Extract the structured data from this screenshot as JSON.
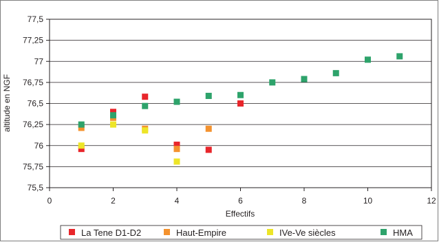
{
  "chart_data": {
    "type": "scatter",
    "title": "",
    "xlabel": "Effectifs",
    "ylabel": "altitude en NGF",
    "xlim": [
      0,
      12
    ],
    "ylim": [
      75.5,
      77.5
    ],
    "x_ticks": [
      "0",
      "2",
      "4",
      "6",
      "8",
      "10",
      "12"
    ],
    "y_ticks": [
      "75,5",
      "75,75",
      "76",
      "76,25",
      "76,5",
      "76,75",
      "77",
      "77,25",
      "77,5"
    ],
    "grid": "horizontal",
    "legend_position": "bottom",
    "series": [
      {
        "name": "La Tene D1-D2",
        "color": "#e8262b",
        "points": [
          [
            1,
            75.96
          ],
          [
            2,
            76.4
          ],
          [
            3,
            76.58
          ],
          [
            4,
            76.01
          ],
          [
            5,
            75.95
          ],
          [
            6,
            76.5
          ]
        ]
      },
      {
        "name": "Haut-Empire",
        "color": "#f4922e",
        "points": [
          [
            1,
            76.21
          ],
          [
            2,
            76.33
          ],
          [
            3,
            76.2
          ],
          [
            4,
            75.96
          ],
          [
            5,
            76.2
          ]
        ]
      },
      {
        "name": "IVe-Ve siècles",
        "color": "#ede528",
        "points": [
          [
            1,
            76.0
          ],
          [
            2,
            76.25
          ],
          [
            3,
            76.18
          ],
          [
            4,
            75.81
          ]
        ]
      },
      {
        "name": "HMA",
        "color": "#2ea36b",
        "points": [
          [
            1,
            76.25
          ],
          [
            2,
            76.36
          ],
          [
            3,
            76.47
          ],
          [
            4,
            76.52
          ],
          [
            5,
            76.59
          ],
          [
            6,
            76.6
          ],
          [
            7,
            76.75
          ],
          [
            8,
            76.79
          ],
          [
            9,
            76.86
          ],
          [
            10,
            77.02
          ],
          [
            11,
            77.06
          ]
        ]
      }
    ]
  }
}
